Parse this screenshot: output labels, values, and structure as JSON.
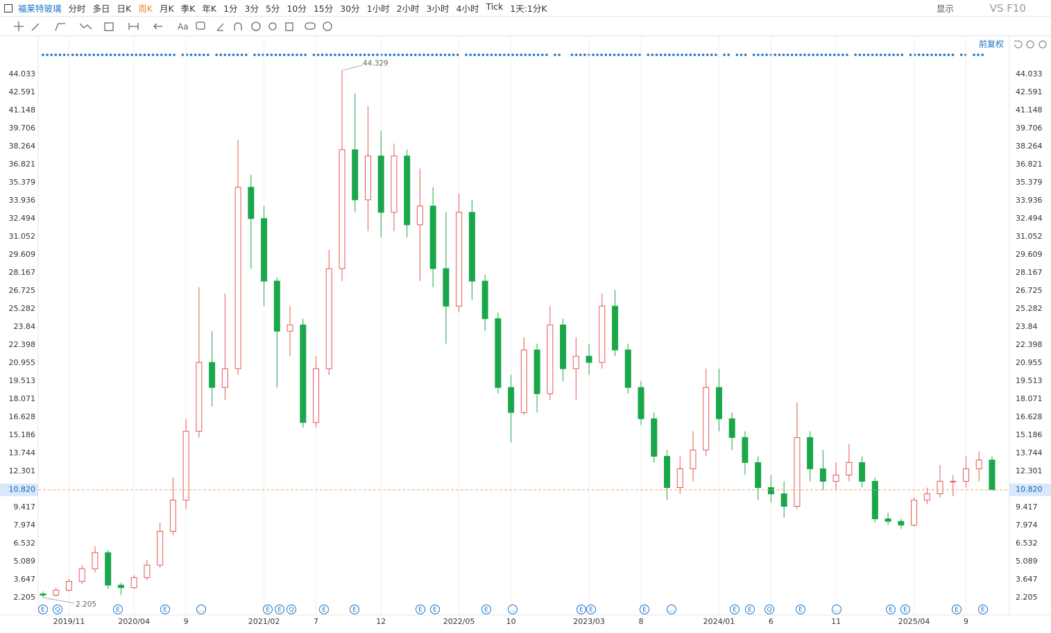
{
  "toolbar": {
    "symbol": "福莱特玻璃",
    "periods": [
      "分时",
      "多日",
      "日K",
      "周K",
      "月K",
      "季K",
      "年K",
      "1分",
      "3分",
      "5分",
      "10分",
      "15分",
      "30分",
      "1小时",
      "2小时",
      "3小时",
      "4小时",
      "Tick",
      "1天:1分K"
    ],
    "active_period": "周K",
    "display": "显示",
    "vs_f10": "VS F10"
  },
  "adjust": "前复权",
  "event_markers": [
    "E",
    "Q",
    "E",
    "E",
    "…",
    "E",
    "E",
    "Q",
    "E",
    "E",
    "E",
    "E",
    "E",
    "…",
    "E",
    "E",
    "E",
    "…",
    "E",
    "E",
    "Q",
    "E",
    "…",
    "E",
    "E",
    "E",
    "E"
  ],
  "chart_data": {
    "type": "candlestick",
    "categories": [
      null,
      null,
      "2019/11",
      null,
      null,
      null,
      null,
      "2020/04",
      null,
      null,
      null,
      "9",
      null,
      null,
      null,
      null,
      null,
      "2021/02",
      null,
      null,
      null,
      "7",
      null,
      null,
      null,
      null,
      "12",
      null,
      null,
      null,
      null,
      null,
      "2022/05",
      null,
      null,
      null,
      "10",
      null,
      null,
      null,
      null,
      null,
      "2023/03",
      null,
      null,
      null,
      "8",
      null,
      null,
      null,
      null,
      null,
      "2024/01",
      null,
      null,
      null,
      "6",
      null,
      null,
      null,
      null,
      "11",
      null,
      null,
      null,
      null,
      null,
      "2025/04",
      null,
      null,
      null,
      "9",
      null,
      null
    ],
    "open": [
      2.5,
      2.4,
      2.8,
      3.5,
      4.5,
      5.8,
      3.2,
      3.0,
      3.8,
      4.8,
      7.5,
      10.0,
      15.5,
      21.0,
      19.0,
      20.5,
      35.0,
      32.5,
      27.5,
      23.5,
      24.0,
      16.2,
      20.5,
      28.5,
      38.0,
      34.0,
      37.5,
      33.0,
      37.5,
      32.0,
      33.5,
      28.5,
      25.5,
      33.0,
      27.5,
      24.5,
      19.0,
      17.0,
      22.0,
      18.5,
      24.0,
      20.5,
      21.5,
      21.0,
      25.5,
      22.0,
      19.0,
      16.5,
      13.5,
      11.0,
      12.5,
      14.0,
      19.0,
      16.5,
      15.0,
      13.0,
      11.0,
      10.5,
      9.5,
      15.0,
      12.5,
      11.5,
      12.0,
      13.0,
      11.5,
      8.5,
      8.3,
      8.0,
      10.0,
      10.5,
      11.5,
      11.5,
      12.5,
      13.2
    ],
    "high": [
      2.7,
      3.0,
      3.7,
      4.8,
      6.3,
      6.0,
      3.4,
      4.0,
      5.2,
      8.2,
      11.8,
      16.5,
      27.0,
      23.5,
      26.5,
      38.8,
      36.0,
      33.5,
      27.8,
      25.5,
      24.5,
      21.5,
      30.0,
      44.329,
      42.5,
      41.5,
      39.5,
      38.5,
      38.0,
      36.5,
      35.0,
      33.0,
      34.5,
      34.0,
      28.0,
      25.0,
      20.0,
      23.0,
      22.5,
      25.5,
      24.5,
      23.0,
      22.5,
      26.5,
      26.8,
      22.5,
      19.5,
      17.0,
      14.0,
      13.5,
      15.5,
      20.5,
      20.5,
      17.0,
      15.5,
      13.5,
      12.0,
      11.5,
      17.8,
      15.5,
      14.0,
      13.0,
      14.5,
      13.5,
      11.8,
      9.0,
      8.5,
      10.2,
      11.0,
      12.8,
      12.0,
      13.5,
      13.9,
      13.5
    ],
    "low": [
      2.205,
      2.3,
      2.7,
      3.3,
      4.2,
      2.9,
      2.4,
      2.9,
      3.6,
      4.6,
      7.2,
      9.3,
      15.0,
      17.5,
      18.0,
      20.0,
      28.5,
      25.5,
      19.0,
      21.5,
      15.8,
      15.8,
      20.0,
      27.5,
      33.0,
      31.5,
      31.0,
      31.5,
      31.0,
      27.5,
      27.0,
      22.5,
      25.0,
      26.0,
      23.5,
      18.5,
      14.6,
      16.8,
      17.0,
      18.0,
      19.5,
      18.0,
      20.0,
      20.5,
      21.5,
      18.5,
      16.0,
      13.0,
      10.0,
      10.5,
      11.5,
      13.5,
      15.5,
      14.0,
      12.0,
      10.0,
      9.8,
      8.6,
      9.3,
      11.5,
      10.8,
      10.8,
      11.5,
      11.0,
      8.2,
      8.0,
      7.7,
      7.9,
      9.7,
      10.2,
      10.3,
      11.0,
      11.5,
      10.8
    ],
    "close": [
      2.4,
      2.8,
      3.5,
      4.5,
      5.8,
      3.2,
      3.0,
      3.8,
      4.8,
      7.5,
      10.0,
      15.5,
      21.0,
      19.0,
      20.5,
      35.0,
      32.5,
      27.5,
      23.5,
      24.0,
      16.2,
      20.5,
      28.5,
      38.0,
      34.0,
      37.5,
      33.0,
      37.5,
      32.0,
      33.5,
      28.5,
      25.5,
      33.0,
      27.5,
      24.5,
      19.0,
      17.0,
      22.0,
      18.5,
      24.0,
      20.5,
      21.5,
      21.0,
      25.5,
      22.0,
      19.0,
      16.5,
      13.5,
      11.0,
      12.5,
      14.0,
      19.0,
      16.5,
      15.0,
      13.0,
      11.0,
      10.5,
      9.5,
      15.0,
      12.5,
      11.5,
      12.0,
      13.0,
      11.5,
      8.5,
      8.3,
      8.0,
      10.0,
      10.5,
      11.5,
      11.5,
      12.5,
      13.2,
      10.82
    ],
    "up_color": "#e8554e",
    "down_color": "#1aa64b",
    "ylim": [
      1.817,
      46.086
    ],
    "yticks": [
      2.205,
      3.647,
      5.089,
      6.532,
      7.974,
      9.417,
      12.301,
      13.744,
      15.186,
      16.628,
      18.071,
      19.513,
      20.955,
      22.398,
      23.84,
      25.282,
      26.725,
      28.167,
      29.609,
      31.052,
      32.494,
      33.936,
      35.379,
      36.821,
      38.264,
      39.706,
      41.148,
      42.591,
      44.033
    ],
    "last_price": {
      "value": 10.82,
      "label": "10.820"
    },
    "grid": "x"
  }
}
